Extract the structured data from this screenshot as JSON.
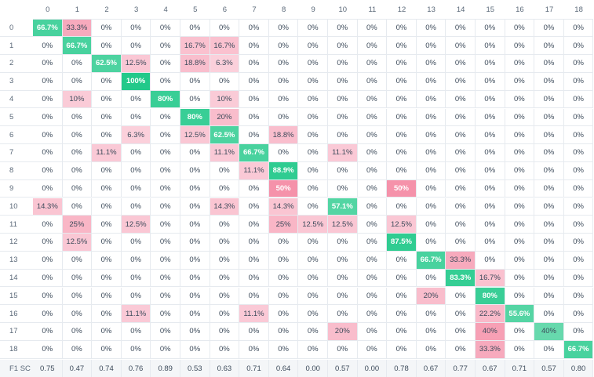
{
  "chart_data": {
    "type": "heatmap",
    "x_labels": [
      "0",
      "1",
      "2",
      "3",
      "4",
      "5",
      "6",
      "7",
      "8",
      "9",
      "10",
      "11",
      "12",
      "13",
      "14",
      "15",
      "16",
      "17",
      "18"
    ],
    "y_labels": [
      "0",
      "1",
      "2",
      "3",
      "4",
      "5",
      "6",
      "7",
      "8",
      "9",
      "10",
      "11",
      "12",
      "13",
      "14",
      "15",
      "16",
      "17",
      "18"
    ],
    "cells": [
      [
        "66.7%",
        "33.3%",
        "0%",
        "0%",
        "0%",
        "0%",
        "0%",
        "0%",
        "0%",
        "0%",
        "0%",
        "0%",
        "0%",
        "0%",
        "0%",
        "0%",
        "0%",
        "0%",
        "0%"
      ],
      [
        "0%",
        "66.7%",
        "0%",
        "0%",
        "0%",
        "16.7%",
        "16.7%",
        "0%",
        "0%",
        "0%",
        "0%",
        "0%",
        "0%",
        "0%",
        "0%",
        "0%",
        "0%",
        "0%",
        "0%"
      ],
      [
        "0%",
        "0%",
        "62.5%",
        "12.5%",
        "0%",
        "18.8%",
        "6.3%",
        "0%",
        "0%",
        "0%",
        "0%",
        "0%",
        "0%",
        "0%",
        "0%",
        "0%",
        "0%",
        "0%",
        "0%"
      ],
      [
        "0%",
        "0%",
        "0%",
        "100%",
        "0%",
        "0%",
        "0%",
        "0%",
        "0%",
        "0%",
        "0%",
        "0%",
        "0%",
        "0%",
        "0%",
        "0%",
        "0%",
        "0%",
        "0%"
      ],
      [
        "0%",
        "10%",
        "0%",
        "0%",
        "80%",
        "0%",
        "10%",
        "0%",
        "0%",
        "0%",
        "0%",
        "0%",
        "0%",
        "0%",
        "0%",
        "0%",
        "0%",
        "0%",
        "0%"
      ],
      [
        "0%",
        "0%",
        "0%",
        "0%",
        "0%",
        "80%",
        "20%",
        "0%",
        "0%",
        "0%",
        "0%",
        "0%",
        "0%",
        "0%",
        "0%",
        "0%",
        "0%",
        "0%",
        "0%"
      ],
      [
        "0%",
        "0%",
        "0%",
        "6.3%",
        "0%",
        "12.5%",
        "62.5%",
        "0%",
        "18.8%",
        "0%",
        "0%",
        "0%",
        "0%",
        "0%",
        "0%",
        "0%",
        "0%",
        "0%",
        "0%"
      ],
      [
        "0%",
        "0%",
        "11.1%",
        "0%",
        "0%",
        "0%",
        "11.1%",
        "66.7%",
        "0%",
        "0%",
        "11.1%",
        "0%",
        "0%",
        "0%",
        "0%",
        "0%",
        "0%",
        "0%",
        "0%"
      ],
      [
        "0%",
        "0%",
        "0%",
        "0%",
        "0%",
        "0%",
        "0%",
        "11.1%",
        "88.9%",
        "0%",
        "0%",
        "0%",
        "0%",
        "0%",
        "0%",
        "0%",
        "0%",
        "0%",
        "0%"
      ],
      [
        "0%",
        "0%",
        "0%",
        "0%",
        "0%",
        "0%",
        "0%",
        "0%",
        "50%",
        "0%",
        "0%",
        "0%",
        "50%",
        "0%",
        "0%",
        "0%",
        "0%",
        "0%",
        "0%"
      ],
      [
        "14.3%",
        "0%",
        "0%",
        "0%",
        "0%",
        "0%",
        "14.3%",
        "0%",
        "14.3%",
        "0%",
        "57.1%",
        "0%",
        "0%",
        "0%",
        "0%",
        "0%",
        "0%",
        "0%",
        "0%"
      ],
      [
        "0%",
        "25%",
        "0%",
        "12.5%",
        "0%",
        "0%",
        "0%",
        "0%",
        "25%",
        "12.5%",
        "12.5%",
        "0%",
        "12.5%",
        "0%",
        "0%",
        "0%",
        "0%",
        "0%",
        "0%"
      ],
      [
        "0%",
        "12.5%",
        "0%",
        "0%",
        "0%",
        "0%",
        "0%",
        "0%",
        "0%",
        "0%",
        "0%",
        "0%",
        "87.5%",
        "0%",
        "0%",
        "0%",
        "0%",
        "0%",
        "0%"
      ],
      [
        "0%",
        "0%",
        "0%",
        "0%",
        "0%",
        "0%",
        "0%",
        "0%",
        "0%",
        "0%",
        "0%",
        "0%",
        "0%",
        "66.7%",
        "33.3%",
        "0%",
        "0%",
        "0%",
        "0%"
      ],
      [
        "0%",
        "0%",
        "0%",
        "0%",
        "0%",
        "0%",
        "0%",
        "0%",
        "0%",
        "0%",
        "0%",
        "0%",
        "0%",
        "0%",
        "83.3%",
        "16.7%",
        "0%",
        "0%",
        "0%"
      ],
      [
        "0%",
        "0%",
        "0%",
        "0%",
        "0%",
        "0%",
        "0%",
        "0%",
        "0%",
        "0%",
        "0%",
        "0%",
        "0%",
        "20%",
        "0%",
        "80%",
        "0%",
        "0%",
        "0%"
      ],
      [
        "0%",
        "0%",
        "0%",
        "11.1%",
        "0%",
        "0%",
        "0%",
        "11.1%",
        "0%",
        "0%",
        "0%",
        "0%",
        "0%",
        "0%",
        "0%",
        "22.2%",
        "55.6%",
        "0%",
        "0%"
      ],
      [
        "0%",
        "0%",
        "0%",
        "0%",
        "0%",
        "0%",
        "0%",
        "0%",
        "0%",
        "0%",
        "20%",
        "0%",
        "0%",
        "0%",
        "0%",
        "40%",
        "0%",
        "40%",
        "0%"
      ],
      [
        "0%",
        "0%",
        "0%",
        "0%",
        "0%",
        "0%",
        "0%",
        "0%",
        "0%",
        "0%",
        "0%",
        "0%",
        "0%",
        "0%",
        "0%",
        "33.3%",
        "0%",
        "0%",
        "66.7%"
      ]
    ],
    "f1_label": "F1 SC",
    "f1_scores": [
      "0.75",
      "0.47",
      "0.74",
      "0.76",
      "0.89",
      "0.53",
      "0.63",
      "0.71",
      "0.64",
      "0.00",
      "0.57",
      "0.00",
      "0.78",
      "0.67",
      "0.77",
      "0.67",
      "0.71",
      "0.57",
      "0.80"
    ],
    "colors": {
      "correct_strong": "#22c98a",
      "correct_light": "#d3f3e5",
      "error_strong": "#f4839e",
      "error_light": "#fde8ee",
      "grid": "#e6eaef",
      "f1_row_bg": "#f4f6f8"
    }
  }
}
